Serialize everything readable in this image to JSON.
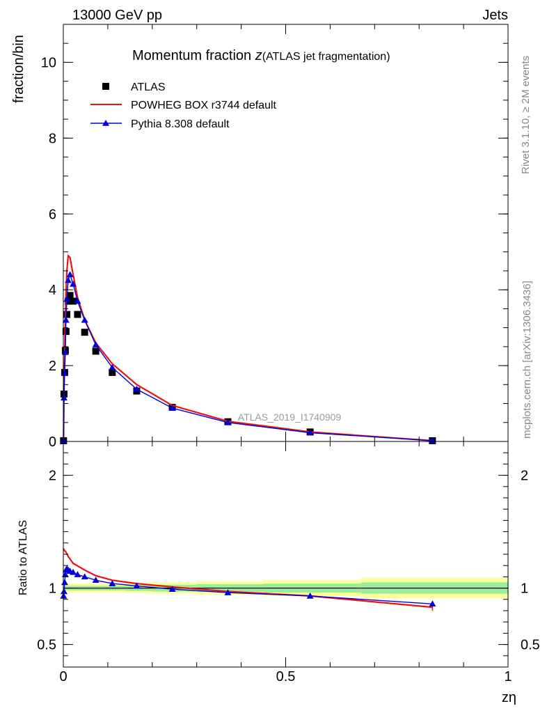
{
  "header": {
    "energy": "13000 GeV pp",
    "category": "Jets"
  },
  "side_text": {
    "rivet": "Rivet 3.1.10, ≥ 2M events",
    "mcplots": "mcplots.cern.ch [arXiv:1306.3436]"
  },
  "watermark": "ATLAS_2019_I1740909",
  "colors": {
    "atlas": "#000000",
    "powheg": "#ee1111",
    "pythia": "#0000dd",
    "band_outer": "#ffff99",
    "band_inner": "#99ee99"
  },
  "chart_data": [
    {
      "type": "scatter",
      "title_main": "Momentum fraction ",
      "title_var": "z",
      "title_sub": "(ATLAS jet fragmentation)",
      "ylabel": "fraction/bin",
      "xlim": [
        0,
        1
      ],
      "ylim": [
        0,
        11
      ],
      "yticks": [
        0,
        2,
        4,
        6,
        8,
        10
      ],
      "ytick_labels": [
        "0",
        "2",
        "4",
        "6",
        "8",
        "10"
      ],
      "legend_placement": "top-left",
      "series": [
        {
          "name": "ATLAS",
          "style": "markers",
          "x": [
            0.0005,
            0.0015,
            0.003,
            0.0045,
            0.006,
            0.008,
            0.011,
            0.015,
            0.022,
            0.032,
            0.048,
            0.073,
            0.11,
            0.165,
            0.245,
            0.37,
            0.555,
            0.83
          ],
          "y": [
            0.02,
            1.25,
            1.82,
            2.4,
            2.9,
            3.35,
            3.7,
            3.85,
            3.7,
            3.35,
            2.88,
            2.38,
            1.82,
            1.33,
            0.9,
            0.52,
            0.25,
            0.02
          ]
        },
        {
          "name": "POWHEG BOX r3744 default",
          "style": "line",
          "x": [
            0.0005,
            0.0015,
            0.003,
            0.0045,
            0.006,
            0.008,
            0.011,
            0.015,
            0.022,
            0.032,
            0.048,
            0.073,
            0.11,
            0.165,
            0.245,
            0.37,
            0.555,
            0.83
          ],
          "y": [
            0.02,
            1.5,
            2.3,
            3.2,
            3.9,
            4.5,
            4.9,
            4.85,
            4.4,
            3.8,
            3.2,
            2.6,
            2.05,
            1.5,
            0.95,
            0.53,
            0.25,
            0.02
          ]
        },
        {
          "name": "Pythia 8.308 default",
          "style": "line-markers",
          "x": [
            0.0005,
            0.0015,
            0.003,
            0.0045,
            0.006,
            0.008,
            0.011,
            0.015,
            0.022,
            0.032,
            0.048,
            0.073,
            0.11,
            0.165,
            0.245,
            0.37,
            0.555,
            0.83
          ],
          "y": [
            0.02,
            1.15,
            1.8,
            2.35,
            3.2,
            3.75,
            4.25,
            4.4,
            4.15,
            3.7,
            3.2,
            2.55,
            1.95,
            1.38,
            0.88,
            0.5,
            0.23,
            0.02
          ]
        }
      ]
    },
    {
      "type": "line",
      "ylabel": "Ratio to ATLAS",
      "xlabel": "zη",
      "xlim": [
        0,
        1
      ],
      "ylim": [
        0.3,
        2.3
      ],
      "xticks": [
        0,
        0.5,
        1
      ],
      "xtick_labels": [
        "0",
        "0.5",
        "1"
      ],
      "yticks": [
        0.5,
        1,
        2
      ],
      "ytick_labels": [
        "0.5",
        "1",
        "2"
      ],
      "bands": {
        "edges": [
          0,
          0.09,
          0.14,
          0.2,
          0.3,
          0.45,
          0.67,
          1.0
        ],
        "outer": [
          0.04,
          0.04,
          0.045,
          0.05,
          0.06,
          0.07,
          0.09
        ],
        "inner": [
          0.02,
          0.02,
          0.025,
          0.03,
          0.035,
          0.04,
          0.05
        ]
      },
      "series": [
        {
          "name": "POWHEG BOX r3744 default",
          "x": [
            0.0005,
            0.003,
            0.006,
            0.011,
            0.022,
            0.048,
            0.073,
            0.11,
            0.165,
            0.245,
            0.37,
            0.555,
            0.83
          ],
          "y": [
            1.35,
            1.33,
            1.32,
            1.28,
            1.22,
            1.16,
            1.11,
            1.07,
            1.04,
            1.01,
            0.97,
            0.93,
            0.83
          ],
          "err": [
            0,
            0,
            0,
            0,
            0,
            0,
            0,
            0,
            0,
            0,
            0,
            0,
            0.03
          ]
        },
        {
          "name": "Pythia 8.308 default",
          "x": [
            0.0005,
            0.0015,
            0.003,
            0.0045,
            0.006,
            0.008,
            0.011,
            0.015,
            0.022,
            0.032,
            0.048,
            0.073,
            0.11,
            0.165,
            0.245,
            0.37,
            0.555,
            0.83
          ],
          "y": [
            0.93,
            0.97,
            1.05,
            1.12,
            1.16,
            1.17,
            1.16,
            1.15,
            1.14,
            1.12,
            1.1,
            1.07,
            1.04,
            1.02,
            0.99,
            0.96,
            0.93,
            0.86
          ],
          "err": [
            0,
            0,
            0,
            0,
            0,
            0,
            0,
            0,
            0,
            0,
            0,
            0,
            0,
            0,
            0,
            0,
            0,
            0.02
          ]
        }
      ]
    }
  ]
}
